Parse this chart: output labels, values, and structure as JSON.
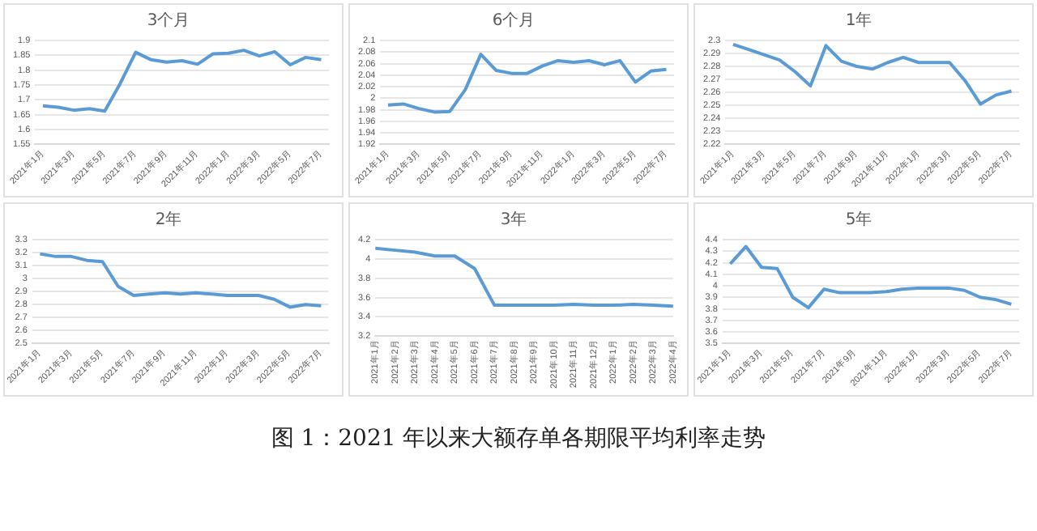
{
  "chart_data": [
    {
      "type": "line",
      "title": "3个月",
      "categories": [
        "2021年1月",
        null,
        "2021年3月",
        null,
        "2021年5月",
        null,
        "2021年7月",
        null,
        "2021年9月",
        null,
        "2021年11月",
        null,
        "2022年1月",
        null,
        "2022年3月",
        null,
        "2022年5月",
        null,
        "2022年7月"
      ],
      "series": [
        {
          "color": "#5b9bd5",
          "values": [
            1.68,
            1.675,
            1.665,
            1.67,
            1.662,
            1.755,
            1.86,
            1.835,
            1.827,
            1.832,
            1.82,
            1.855,
            1.857,
            1.867,
            1.848,
            1.862,
            1.818,
            1.843,
            1.835
          ]
        }
      ],
      "ylim": [
        1.55,
        1.9
      ],
      "yticks": [
        1.55,
        1.6,
        1.65,
        1.7,
        1.75,
        1.8,
        1.85,
        1.9
      ],
      "grid": "y",
      "legend": false,
      "marker": "none"
    },
    {
      "type": "line",
      "title": "6个月",
      "categories": [
        "2021年1月",
        null,
        "2021年3月",
        null,
        "2021年5月",
        null,
        "2021年7月",
        null,
        "2021年9月",
        null,
        "2021年11月",
        null,
        "2022年1月",
        null,
        "2022年3月",
        null,
        "2022年5月",
        null,
        "2022年7月"
      ],
      "series": [
        {
          "color": "#5b9bd5",
          "values": [
            1.988,
            1.99,
            1.982,
            1.976,
            1.977,
            2.015,
            2.076,
            2.048,
            2.043,
            2.043,
            2.056,
            2.065,
            2.062,
            2.065,
            2.058,
            2.065,
            2.028,
            2.047,
            2.05
          ]
        }
      ],
      "ylim": [
        1.92,
        2.1
      ],
      "yticks": [
        1.92,
        1.94,
        1.96,
        1.98,
        2,
        2.02,
        2.04,
        2.06,
        2.08,
        2.1
      ],
      "grid": "y",
      "legend": false,
      "marker": "none"
    },
    {
      "type": "line",
      "title": "1年",
      "categories": [
        "2021年1月",
        null,
        "2021年3月",
        null,
        "2021年5月",
        null,
        "2021年7月",
        null,
        "2021年9月",
        null,
        "2021年11月",
        null,
        "2022年1月",
        null,
        "2022年3月",
        null,
        "2022年5月",
        null,
        "2022年7月"
      ],
      "series": [
        {
          "color": "#5b9bd5",
          "values": [
            2.297,
            2.293,
            2.289,
            2.285,
            2.276,
            2.265,
            2.296,
            2.284,
            2.28,
            2.278,
            2.283,
            2.287,
            2.283,
            2.283,
            2.283,
            2.269,
            2.251,
            2.258,
            2.261
          ]
        }
      ],
      "ylim": [
        2.22,
        2.3
      ],
      "yticks": [
        2.22,
        2.23,
        2.24,
        2.25,
        2.26,
        2.27,
        2.28,
        2.29,
        2.3
      ],
      "grid": "y",
      "legend": false,
      "marker": "none"
    },
    {
      "type": "line",
      "title": "2年",
      "categories": [
        "2021年1月",
        null,
        "2021年3月",
        null,
        "2021年5月",
        null,
        "2021年7月",
        null,
        "2021年9月",
        null,
        "2021年11月",
        null,
        "2022年1月",
        null,
        "2022年3月",
        null,
        "2022年5月",
        null,
        "2022年7月"
      ],
      "series": [
        {
          "color": "#5b9bd5",
          "values": [
            3.19,
            3.17,
            3.17,
            3.14,
            3.13,
            2.94,
            2.87,
            2.88,
            2.89,
            2.88,
            2.89,
            2.88,
            2.87,
            2.87,
            2.87,
            2.84,
            2.78,
            2.8,
            2.79
          ]
        }
      ],
      "ylim": [
        2.5,
        3.3
      ],
      "yticks": [
        2.5,
        2.6,
        2.7,
        2.8,
        2.9,
        3,
        3.1,
        3.2,
        3.3
      ],
      "grid": "y",
      "legend": false,
      "marker": "none"
    },
    {
      "type": "line",
      "title": "3年",
      "categories": [
        "2021年1月",
        "2021年2月",
        "2021年3月",
        "2021年4月",
        "2021年5月",
        "2021年6月",
        "2021年7月",
        "2021年8月",
        "2021年9月",
        "2021年10月",
        "2021年11月",
        "2021年12月",
        "2022年1月",
        "2022年2月",
        "2022年3月",
        "2022年4月"
      ],
      "series": [
        {
          "color": "#5b9bd5",
          "values": [
            4.11,
            4.09,
            4.07,
            4.03,
            4.03,
            3.9,
            3.52,
            3.52,
            3.52,
            3.52,
            3.53,
            3.52,
            3.52,
            3.53,
            3.52,
            3.51
          ]
        }
      ],
      "ylim": [
        3.2,
        4.2
      ],
      "yticks": [
        3.2,
        3.4,
        3.6,
        3.8,
        4,
        4.2
      ],
      "grid": "y",
      "legend": false,
      "marker": "none"
    },
    {
      "type": "line",
      "title": "5年",
      "categories": [
        "2021年1月",
        null,
        "2021年3月",
        null,
        "2021年5月",
        null,
        "2021年7月",
        null,
        "2021年9月",
        null,
        "2021年11月",
        null,
        "2022年1月",
        null,
        "2022年3月",
        null,
        "2022年5月",
        null,
        "2022年7月"
      ],
      "series": [
        {
          "color": "#5b9bd5",
          "values": [
            4.19,
            4.34,
            4.16,
            4.15,
            3.9,
            3.81,
            3.97,
            3.94,
            3.94,
            3.94,
            3.95,
            3.97,
            3.98,
            3.98,
            3.98,
            3.96,
            3.9,
            3.88,
            3.84
          ]
        }
      ],
      "ylim": [
        3.5,
        4.4
      ],
      "yticks": [
        3.5,
        3.6,
        3.7,
        3.8,
        3.9,
        4,
        4.1,
        4.2,
        4.3,
        4.4
      ],
      "grid": "y",
      "legend": false,
      "marker": "none",
      "annotations": [
        "图 1：2021 年以来大额存单各期限平均利率走势"
      ]
    }
  ]
}
